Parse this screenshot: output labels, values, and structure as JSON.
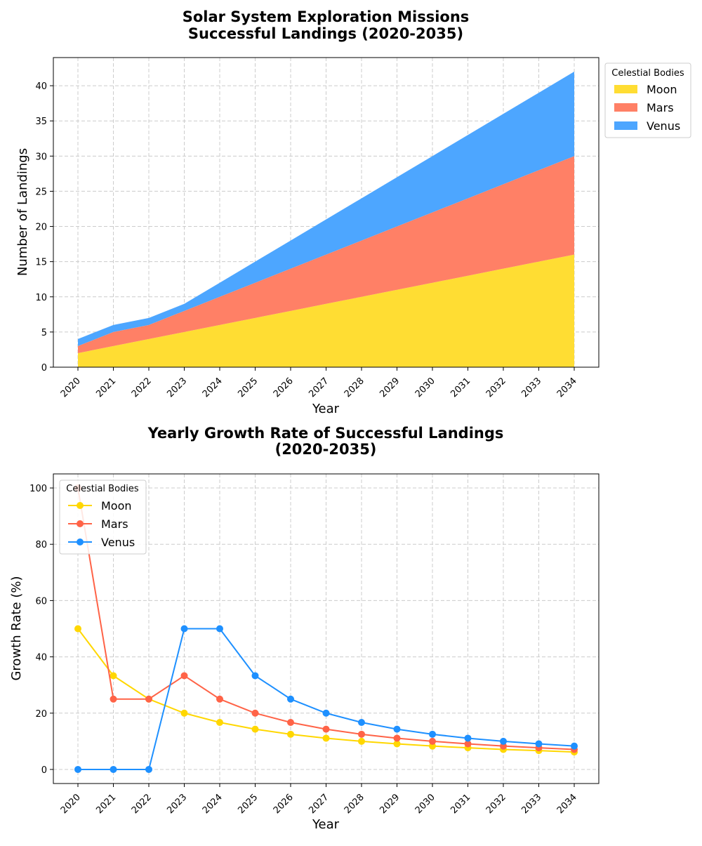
{
  "colors": {
    "moon_fill": "#FFDD33",
    "mars_fill": "#FF8066",
    "venus_fill": "#4DA6FF",
    "moon_line": "#FFD700",
    "mars_line": "#FF6347",
    "venus_line": "#1E90FF",
    "grid": "#cccccc"
  },
  "chart_data": [
    {
      "type": "area",
      "stacked": true,
      "title_line1": "Solar System Exploration Missions",
      "title_line2": "Successful Landings (2020-2035)",
      "xlabel": "Year",
      "ylabel": "Number of Landings",
      "x": [
        "2020",
        "2021",
        "2022",
        "2023",
        "2024",
        "2025",
        "2026",
        "2027",
        "2028",
        "2029",
        "2030",
        "2031",
        "2032",
        "2033",
        "2034"
      ],
      "ylim": [
        0,
        44
      ],
      "yticks": [
        0,
        5,
        10,
        15,
        20,
        25,
        30,
        35,
        40
      ],
      "grid": true,
      "legend_title": "Celestial Bodies",
      "legend_position": "outside upper right",
      "series": [
        {
          "name": "Moon",
          "values": [
            2,
            3,
            4,
            5,
            6,
            7,
            8,
            9,
            10,
            11,
            12,
            13,
            14,
            15,
            16
          ]
        },
        {
          "name": "Mars",
          "values": [
            1,
            2,
            2,
            3,
            4,
            5,
            6,
            7,
            8,
            9,
            10,
            11,
            12,
            13,
            14
          ]
        },
        {
          "name": "Venus",
          "values": [
            1,
            1,
            1,
            1,
            2,
            3,
            4,
            5,
            6,
            7,
            8,
            9,
            10,
            11,
            12
          ]
        }
      ]
    },
    {
      "type": "line",
      "title_line1": "Yearly Growth Rate of Successful Landings",
      "title_line2": "(2020-2035)",
      "xlabel": "Year",
      "ylabel": "Growth Rate (%)",
      "x": [
        "2020",
        "2021",
        "2022",
        "2023",
        "2024",
        "2025",
        "2026",
        "2027",
        "2028",
        "2029",
        "2030",
        "2031",
        "2032",
        "2033",
        "2034"
      ],
      "ylim": [
        -5,
        105
      ],
      "yticks": [
        0,
        20,
        40,
        60,
        80,
        100
      ],
      "grid": true,
      "legend_title": "Celestial Bodies",
      "legend_position": "upper left",
      "series": [
        {
          "name": "Moon",
          "values": [
            50,
            33.3,
            25,
            20,
            16.7,
            14.3,
            12.5,
            11.1,
            10,
            9.1,
            8.3,
            7.7,
            7.1,
            6.7,
            6.2
          ]
        },
        {
          "name": "Mars",
          "values": [
            100,
            25,
            25,
            33.3,
            25,
            20,
            16.7,
            14.3,
            12.5,
            11.1,
            10,
            9.1,
            8.3,
            7.7,
            7.1
          ]
        },
        {
          "name": "Venus",
          "values": [
            0,
            0,
            0,
            50,
            50,
            33.3,
            25,
            20,
            16.7,
            14.3,
            12.5,
            11.1,
            10,
            9.1,
            8.3
          ]
        }
      ]
    }
  ]
}
